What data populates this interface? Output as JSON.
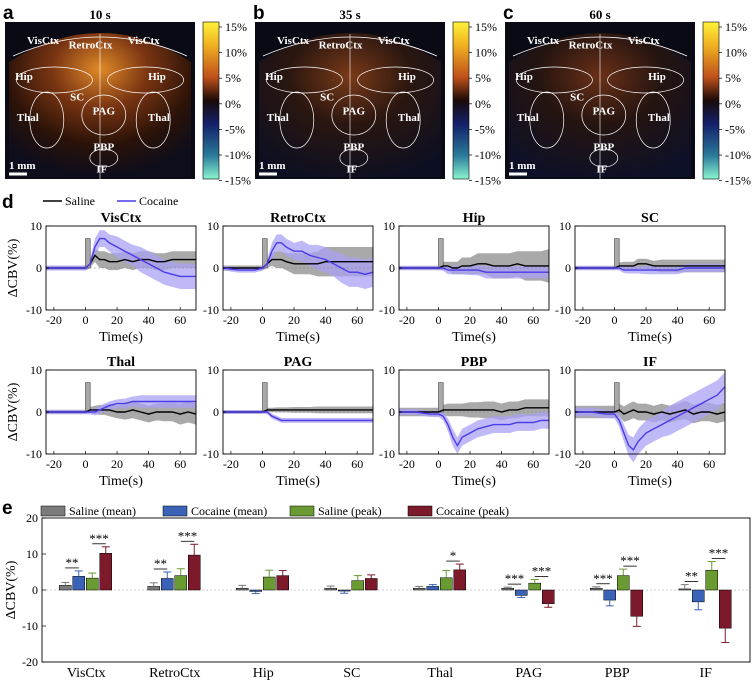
{
  "panel_labels": {
    "a": "a",
    "b": "b",
    "c": "c",
    "d": "d",
    "e": "e"
  },
  "maps": {
    "titles": [
      "10 s",
      "35 s",
      "60 s"
    ],
    "regions": [
      "VisCtx",
      "RetroCtx",
      "VisCtx",
      "Hip",
      "Hip",
      "SC",
      "PAG",
      "Thal",
      "Thal",
      "PBP",
      "IF"
    ],
    "scalebar": "1 mm",
    "colorbar_ticks": [
      "15%",
      "10%",
      "5%",
      "0%",
      "-5%",
      "-10%",
      "-15%"
    ]
  },
  "legend_d": {
    "saline": "Saline",
    "cocaine": "Cocaine"
  },
  "colors": {
    "saline": "#000000",
    "cocaine": "#4B3BE8",
    "saline_band": "#9a9a9a",
    "cocaine_band": "#a9a2f4",
    "saline_mean": "#7b7b7b",
    "cocaine_mean": "#3a63b8",
    "saline_peak": "#6a9a32",
    "cocaine_peak": "#7c1a2c"
  },
  "ylabel": "ΔCBV(%)",
  "xlabel": "Time(s)",
  "chart_data": [
    {
      "type": "line",
      "layout": "grid 2x4",
      "xlim": [
        -25,
        70
      ],
      "ylim": [
        -10,
        10
      ],
      "xticks": [
        -20,
        0,
        20,
        40,
        60
      ],
      "yticks": [
        -10,
        0,
        10
      ],
      "xlabel": "Time(s)",
      "ylabel": "ΔCBV(%)",
      "series_names": [
        "Saline",
        "Cocaine"
      ],
      "stim_bar": {
        "x0": 0,
        "x1": 3,
        "top": 7
      },
      "time": [
        -25,
        -15,
        -5,
        0,
        3,
        6,
        9,
        12,
        15,
        20,
        25,
        30,
        35,
        40,
        45,
        50,
        55,
        60,
        65,
        70
      ],
      "panels": [
        {
          "title": "VisCtx",
          "saline": [
            0,
            0,
            0,
            0,
            1,
            3,
            2,
            2,
            1.5,
            1.5,
            2,
            1.5,
            2,
            2,
            1.5,
            1.5,
            2,
            2,
            2,
            2
          ],
          "saline_err": [
            0.5,
            0.5,
            0.5,
            0.6,
            1,
            1.5,
            2,
            2,
            2,
            2,
            2,
            2,
            2,
            2,
            2,
            2,
            2,
            2,
            2,
            2
          ],
          "cocaine": [
            0,
            0,
            0,
            0,
            1,
            5,
            7,
            7,
            6,
            5,
            4,
            3,
            2,
            1,
            0,
            -1,
            -1.5,
            -2,
            -2,
            -2
          ],
          "cocaine_err": [
            0.6,
            0.6,
            0.6,
            0.6,
            1,
            2,
            2,
            2,
            2,
            2.5,
            2.5,
            2.5,
            3,
            3,
            3,
            3,
            3,
            3,
            3,
            3
          ]
        },
        {
          "title": "RetroCtx",
          "saline": [
            0,
            0,
            0,
            0,
            1,
            2,
            2,
            2,
            1.5,
            1,
            1,
            1,
            1,
            1.5,
            1.5,
            1.5,
            1.5,
            1.5,
            1.5,
            1.5
          ],
          "saline_err": [
            0.6,
            0.6,
            0.6,
            0.6,
            1,
            1.5,
            2,
            2,
            2,
            2.5,
            2.5,
            2.5,
            3,
            3.5,
            3.5,
            3.5,
            3.5,
            3.5,
            3.5,
            3.5
          ],
          "cocaine": [
            0,
            -0.5,
            -0.5,
            0,
            1,
            4,
            6,
            6,
            5,
            4,
            4,
            3,
            2.5,
            2,
            1,
            0,
            -1,
            -1,
            -1.5,
            -1
          ],
          "cocaine_err": [
            0.6,
            0.6,
            0.6,
            0.6,
            1,
            2,
            2,
            2,
            2,
            2,
            2.5,
            2.5,
            3,
            3,
            3,
            3.5,
            3.5,
            3.5,
            3.5,
            3.5
          ]
        },
        {
          "title": "Hip",
          "saline": [
            0,
            0,
            0,
            0,
            0.5,
            0.5,
            0,
            0,
            0.5,
            0.5,
            1,
            1,
            0.5,
            0.5,
            0.5,
            1,
            0.5,
            0.5,
            0.5,
            0.5
          ],
          "saline_err": [
            0.5,
            0.5,
            0.5,
            0.5,
            1,
            1,
            1.5,
            1.5,
            2,
            2,
            2.5,
            2.5,
            3,
            3,
            3,
            3,
            3.5,
            3.5,
            3.5,
            4
          ],
          "cocaine": [
            0,
            0,
            0,
            0,
            0,
            -0.5,
            -0.5,
            -0.5,
            -0.5,
            -0.5,
            -0.5,
            -1,
            -1,
            -1,
            -1,
            -1,
            -1,
            -1,
            -1,
            -1
          ],
          "cocaine_err": [
            0.5,
            0.5,
            0.5,
            0.5,
            0.7,
            1,
            1,
            1,
            1,
            1.2,
            1.2,
            1.5,
            1.5,
            1.5,
            1.5,
            1.5,
            1.5,
            1.5,
            1.5,
            1.5
          ]
        },
        {
          "title": "SC",
          "saline": [
            0,
            0,
            0,
            0,
            0.5,
            0.5,
            0.5,
            0.5,
            1,
            1,
            0.5,
            0.5,
            0.5,
            0.5,
            0.5,
            0.5,
            0.5,
            0.5,
            0.5,
            0.5
          ],
          "saline_err": [
            0.5,
            0.5,
            0.5,
            0.5,
            0.8,
            1,
            1,
            1,
            1.2,
            1.2,
            1.2,
            1.5,
            1.5,
            1.5,
            1.5,
            1.5,
            1.5,
            1.5,
            1.5,
            1.5
          ],
          "cocaine": [
            0,
            0,
            0,
            0,
            0,
            -0.5,
            -0.5,
            -0.5,
            -0.5,
            -0.5,
            -0.5,
            -0.5,
            -0.5,
            -0.5,
            0,
            0,
            0,
            0,
            0,
            0
          ],
          "cocaine_err": [
            0.5,
            0.5,
            0.5,
            0.5,
            0.6,
            0.7,
            0.8,
            0.8,
            0.8,
            1,
            1,
            1,
            1,
            1,
            1,
            1,
            1,
            1,
            1,
            1
          ]
        },
        {
          "title": "Thal",
          "saline": [
            0,
            0,
            0,
            0,
            0.5,
            0.5,
            0.5,
            0.5,
            0.5,
            0,
            0,
            0.5,
            0,
            -0.5,
            0,
            0,
            0,
            -0.5,
            0,
            -0.5
          ],
          "saline_err": [
            0.5,
            0.5,
            0.5,
            0.5,
            0.7,
            1,
            1.2,
            1.2,
            1.5,
            1.5,
            1.8,
            2,
            2,
            2,
            2,
            2.2,
            2.2,
            2.5,
            2.5,
            2.5
          ],
          "cocaine": [
            0,
            0,
            0,
            0,
            0,
            0,
            0.5,
            1,
            1.5,
            2,
            2,
            2.5,
            2.5,
            2.5,
            2.5,
            2.5,
            2.5,
            2.5,
            2.5,
            2.5
          ],
          "cocaine_err": [
            0.5,
            0.5,
            0.5,
            0.5,
            0.6,
            0.8,
            1,
            1,
            1,
            1,
            1.2,
            1.2,
            1.5,
            1.5,
            1.5,
            1.5,
            1.5,
            1.5,
            1.5,
            1.5
          ]
        },
        {
          "title": "PAG",
          "saline": [
            0,
            0,
            0,
            0,
            0.5,
            0.5,
            0.5,
            0.5,
            0.5,
            0.5,
            0.5,
            0.5,
            0.5,
            0.5,
            0.5,
            0.5,
            0.5,
            0.5,
            0.5,
            0.5
          ],
          "saline_err": [
            0.4,
            0.4,
            0.4,
            0.4,
            0.5,
            0.5,
            0.6,
            0.6,
            0.6,
            0.7,
            0.7,
            0.7,
            0.8,
            0.8,
            0.8,
            0.8,
            0.8,
            0.8,
            0.8,
            0.8
          ],
          "cocaine": [
            0,
            0,
            0,
            0,
            0,
            -1,
            -1.5,
            -2,
            -2,
            -2,
            -2,
            -2,
            -2,
            -2,
            -2,
            -2,
            -2,
            -2,
            -2,
            -2
          ],
          "cocaine_err": [
            0.4,
            0.4,
            0.4,
            0.4,
            0.5,
            0.6,
            0.6,
            0.6,
            0.6,
            0.6,
            0.6,
            0.6,
            0.6,
            0.6,
            0.6,
            0.6,
            0.6,
            0.6,
            0.6,
            0.6
          ]
        },
        {
          "title": "PBP",
          "saline": [
            0,
            0,
            0,
            0,
            0.5,
            0.5,
            0.5,
            0.5,
            0.5,
            0.5,
            0.5,
            0.5,
            0.5,
            0,
            0.5,
            0.5,
            1,
            1,
            1,
            1
          ],
          "saline_err": [
            1,
            1,
            1,
            1,
            1.2,
            1.5,
            1.5,
            1.5,
            1.5,
            1.8,
            1.8,
            2,
            2,
            2,
            2,
            2,
            2,
            2,
            2,
            2
          ],
          "cocaine": [
            0,
            0,
            -0.5,
            -0.5,
            -1,
            -3,
            -6,
            -8,
            -6,
            -5,
            -4,
            -3.5,
            -3,
            -3,
            -3,
            -2.5,
            -2.5,
            -2.5,
            -2,
            -2
          ],
          "cocaine_err": [
            0.7,
            0.7,
            0.7,
            0.7,
            1,
            1.5,
            2,
            2,
            2,
            2,
            2,
            2,
            2,
            2,
            2,
            2,
            2,
            2,
            2,
            2
          ]
        },
        {
          "title": "IF",
          "saline": [
            0,
            0,
            0,
            0,
            0.5,
            -0.5,
            0,
            0.5,
            0,
            0,
            -0.5,
            0,
            -0.5,
            0,
            0.5,
            -0.5,
            0,
            0,
            -0.5,
            0
          ],
          "saline_err": [
            1.5,
            1.5,
            1.5,
            1.5,
            1.5,
            1.8,
            2,
            2,
            2,
            2,
            2,
            2,
            2,
            2,
            2.2,
            2.2,
            2.2,
            2.2,
            2.2,
            2.2
          ],
          "cocaine": [
            0,
            0,
            -0.5,
            -0.5,
            -2,
            -5,
            -8,
            -9,
            -7,
            -5,
            -4,
            -3,
            -2,
            -1,
            0,
            1,
            2,
            3,
            4,
            6
          ],
          "cocaine_err": [
            1,
            1,
            1,
            1,
            1.5,
            2,
            2.5,
            3,
            3,
            3,
            3,
            3,
            3.5,
            3.5,
            3.5,
            3.5,
            3.5,
            3.5,
            3.5,
            3.5
          ]
        }
      ]
    },
    {
      "type": "bar",
      "ylim": [
        -20,
        20
      ],
      "yticks": [
        -20,
        -10,
        0,
        10,
        20
      ],
      "ylabel": "ΔCBV(%)",
      "categories": [
        "VisCtx",
        "RetroCtx",
        "Hip",
        "SC",
        "Thal",
        "PAG",
        "PBP",
        "IF"
      ],
      "series": [
        {
          "name": "Saline (mean)",
          "values": [
            1.3,
            1,
            0.5,
            0.5,
            0.5,
            0.5,
            0.5,
            0.3
          ],
          "err": [
            0.8,
            1,
            0.8,
            0.6,
            0.5,
            0.3,
            0.4,
            1.2
          ]
        },
        {
          "name": "Cocaine (mean)",
          "values": [
            3.8,
            3.2,
            -0.4,
            -0.3,
            1,
            -1.5,
            -2.8,
            -3.3
          ],
          "err": [
            1.5,
            1.8,
            0.6,
            0.6,
            0.5,
            0.6,
            1.6,
            2.2
          ]
        },
        {
          "name": "Saline (peak)",
          "values": [
            3.3,
            4,
            3.6,
            2.6,
            3.4,
            1.9,
            4,
            5.5
          ],
          "err": [
            1.4,
            1.9,
            1.9,
            1.4,
            2,
            1,
            1.8,
            2.4
          ]
        },
        {
          "name": "Cocaine (peak)",
          "values": [
            10.2,
            9.7,
            4,
            3.2,
            5.6,
            -3.8,
            -7.3,
            -10.6
          ],
          "err": [
            1.8,
            3,
            1.4,
            1,
            1.6,
            1,
            2.8,
            4
          ]
        }
      ],
      "significance": [
        {
          "category": "VisCtx",
          "over": "mean",
          "label": "**"
        },
        {
          "category": "VisCtx",
          "over": "peak",
          "label": "***"
        },
        {
          "category": "RetroCtx",
          "over": "mean",
          "label": "**"
        },
        {
          "category": "RetroCtx",
          "over": "peak",
          "label": "***"
        },
        {
          "category": "Thal",
          "over": "peak",
          "label": "*"
        },
        {
          "category": "PAG",
          "over": "mean",
          "label": "***"
        },
        {
          "category": "PAG",
          "over": "peak",
          "label": "***"
        },
        {
          "category": "PBP",
          "over": "mean",
          "label": "***"
        },
        {
          "category": "PBP",
          "over": "peak",
          "label": "***"
        },
        {
          "category": "IF",
          "over": "mean",
          "label": "**"
        },
        {
          "category": "IF",
          "over": "peak",
          "label": "***"
        }
      ]
    }
  ]
}
